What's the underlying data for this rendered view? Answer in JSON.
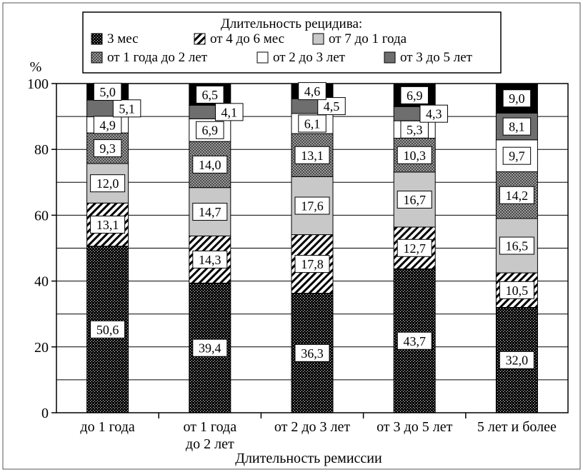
{
  "chart_data": {
    "type": "bar",
    "stacked": true,
    "legend_title": "Длительность рецидива:",
    "legend_position": "top",
    "ylabel": "%",
    "xlabel": "Длительность ремиссии",
    "ylim": [
      0,
      100
    ],
    "yticks": [
      0,
      20,
      40,
      60,
      80,
      100
    ],
    "grid": true,
    "categories": [
      [
        "до 1 года"
      ],
      [
        "от 1 года",
        "до 2 лет"
      ],
      [
        "от 2 до 3 лет"
      ],
      [
        "от 3 до 5 лет"
      ],
      [
        "5 лет и более"
      ]
    ],
    "series": [
      {
        "name": "3 мес",
        "pattern": "dense-dots",
        "values": [
          50.6,
          39.4,
          36.3,
          43.7,
          32.0
        ],
        "labels": [
          "50,6",
          "39,4",
          "36,3",
          "43,7",
          "32,0"
        ]
      },
      {
        "name": "от 4 до 6 мес",
        "pattern": "diagonal-hatch",
        "values": [
          13.1,
          14.3,
          17.8,
          12.7,
          10.5
        ],
        "labels": [
          "13,1",
          "14,3",
          "17,8",
          "12,7",
          "10,5"
        ]
      },
      {
        "name": "от 7 до 1 года",
        "pattern": "light-gray",
        "values": [
          12.0,
          14.7,
          17.6,
          16.7,
          16.5
        ],
        "labels": [
          "12,0",
          "14,7",
          "17,6",
          "16,7",
          "16,5"
        ]
      },
      {
        "name": "от 1 года до 2 лет",
        "pattern": "checker",
        "values": [
          9.3,
          14.0,
          13.1,
          10.3,
          14.2
        ],
        "labels": [
          "9,3",
          "14,0",
          "13,1",
          "10,3",
          "14,2"
        ]
      },
      {
        "name": "от 2 до 3 лет",
        "pattern": "white",
        "values": [
          4.9,
          6.9,
          6.1,
          5.3,
          9.7
        ],
        "labels": [
          "4,9",
          "6,9",
          "6,1",
          "5,3",
          "9,7"
        ]
      },
      {
        "name": "от 3 до 5 лет",
        "pattern": "dark-gray",
        "values": [
          5.1,
          4.1,
          4.5,
          4.3,
          8.1
        ],
        "labels": [
          "5,1",
          "4,1",
          "4,5",
          "4,3",
          "8,1"
        ]
      },
      {
        "name": "",
        "pattern": "black",
        "values": [
          5.0,
          6.5,
          4.6,
          6.9,
          9.0
        ],
        "labels": [
          "5,0",
          "6,5",
          "4,6",
          "6,9",
          "9,0"
        ]
      }
    ]
  }
}
